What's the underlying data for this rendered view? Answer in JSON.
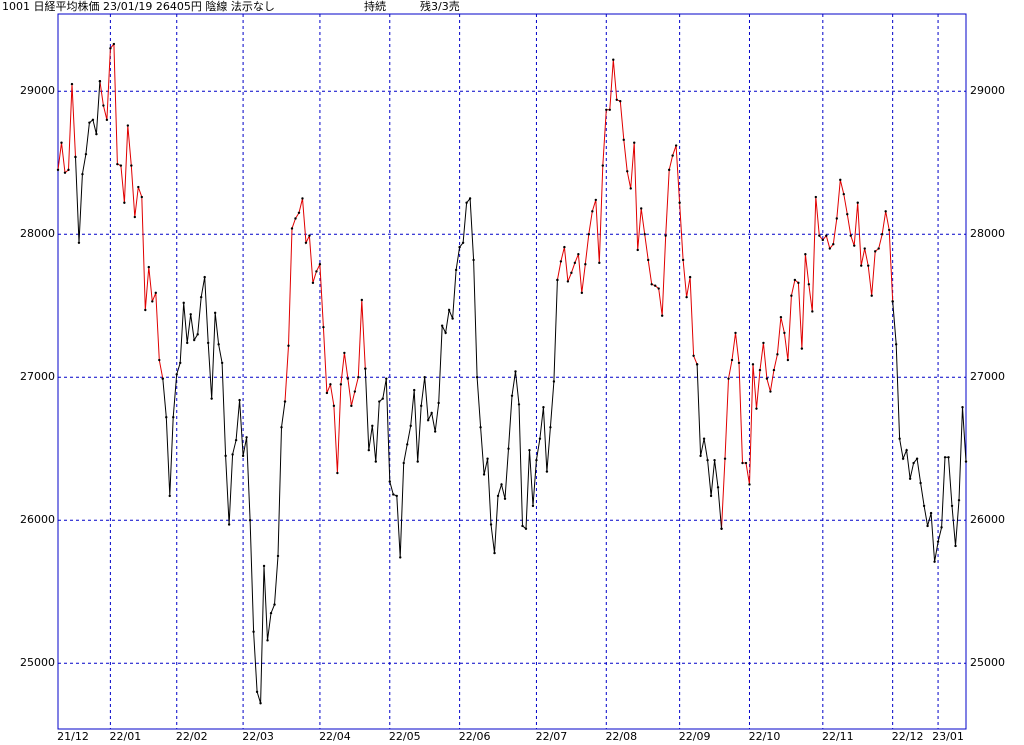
{
  "chart_data": {
    "type": "line",
    "title": "1001 日経平均株価 23/01/19 26405円 陰線 法示なし",
    "status": "持続",
    "remaining": "残3/3売",
    "xlim": [
      0,
      260
    ],
    "ylim": [
      24540,
      29540
    ],
    "yticks": [
      25000,
      26000,
      27000,
      28000,
      29000
    ],
    "xticks": [
      {
        "value": 0,
        "label": "21/12"
      },
      {
        "value": 15,
        "label": "22/01"
      },
      {
        "value": 34,
        "label": "22/02"
      },
      {
        "value": 53,
        "label": "22/03"
      },
      {
        "value": 75,
        "label": "22/04"
      },
      {
        "value": 95,
        "label": "22/05"
      },
      {
        "value": 115,
        "label": "22/06"
      },
      {
        "value": 137,
        "label": "22/07"
      },
      {
        "value": 157,
        "label": "22/08"
      },
      {
        "value": 178,
        "label": "22/09"
      },
      {
        "value": 198,
        "label": "22/10"
      },
      {
        "value": 219,
        "label": "22/11"
      },
      {
        "value": 239,
        "label": "22/12"
      },
      {
        "value": 252,
        "label": "23/01"
      }
    ],
    "grid": true,
    "grid_color": "#0000c8",
    "series": [
      {
        "color": "#e00000",
        "values": [
          28450,
          28640,
          28430,
          28450,
          29050,
          28540,
          null,
          null,
          null,
          null,
          null,
          null,
          29070,
          28900,
          28800,
          29300,
          29330,
          28490,
          28480,
          28220,
          28760,
          28480,
          28120,
          28330,
          28260,
          27470,
          27770,
          27530,
          27590,
          27120,
          26990,
          null,
          null,
          null,
          null,
          null,
          null,
          null,
          null,
          null,
          null,
          null,
          null,
          null,
          null,
          null,
          null,
          null,
          null,
          null,
          null,
          null,
          null,
          null,
          null,
          null,
          null,
          null,
          null,
          null,
          null,
          null,
          null,
          null,
          null,
          26830,
          27220,
          28040,
          28110,
          28150,
          28250,
          27940,
          27990,
          27660,
          27740,
          27790,
          27350,
          26890,
          26950,
          26800,
          26330,
          26950,
          27170,
          26990,
          26800,
          26900,
          27000,
          27540,
          27060,
          null,
          null,
          null,
          null,
          null,
          null,
          null,
          null,
          null,
          null,
          null,
          null,
          null,
          null,
          null,
          null,
          null,
          null,
          null,
          null,
          null,
          null,
          null,
          null,
          null,
          null,
          null,
          null,
          null,
          null,
          null,
          null,
          null,
          null,
          null,
          null,
          null,
          null,
          null,
          null,
          null,
          null,
          null,
          null,
          null,
          null,
          null,
          null,
          null,
          null,
          null,
          null,
          null,
          null,
          27680,
          27810,
          27910,
          27670,
          27730,
          27800,
          27860,
          27590,
          27790,
          28000,
          28160,
          28240,
          27800,
          28480,
          28870,
          28870,
          29220,
          28940,
          28930,
          28660,
          28440,
          28320,
          28640,
          27890,
          28180,
          28000,
          27820,
          27650,
          27640,
          27620,
          27430,
          27990,
          28450,
          28550,
          28620,
          28220,
          27820,
          27560,
          27700,
          27150,
          27090,
          null,
          null,
          null,
          null,
          null,
          null,
          25940,
          26430,
          26990,
          27120,
          27310,
          27100,
          26400,
          26400,
          26250,
          27090,
          26780,
          27050,
          27240,
          26990,
          26900,
          27050,
          27160,
          27420,
          27310,
          27120,
          27570,
          27680,
          27660,
          27200,
          27860,
          27650,
          27460,
          28260,
          27990,
          27960,
          27990,
          27900,
          27930,
          28110,
          28380,
          28280,
          28140,
          27990,
          27920,
          28220,
          27780,
          27900,
          27780,
          27570,
          27880,
          27900,
          28000,
          28160,
          28030,
          27530,
          null,
          null,
          null,
          null,
          null,
          null,
          null,
          null,
          null,
          null,
          null,
          null,
          null,
          null,
          null,
          null,
          null,
          null,
          null,
          null,
          null
        ]
      },
      {
        "color": "#000000",
        "values": [
          null,
          null,
          null,
          null,
          null,
          28540,
          27940,
          28420,
          28560,
          28780,
          28800,
          28700,
          29070,
          null,
          null,
          null,
          null,
          null,
          null,
          null,
          null,
          null,
          null,
          null,
          null,
          null,
          null,
          null,
          null,
          null,
          26990,
          26720,
          26170,
          26720,
          27020,
          27100,
          27520,
          27240,
          27440,
          27260,
          27300,
          27560,
          27700,
          27240,
          26850,
          27450,
          27230,
          27100,
          26450,
          25970,
          26460,
          26560,
          26840,
          26450,
          26580,
          26000,
          25220,
          24800,
          24720,
          25680,
          25160,
          25350,
          25410,
          25750,
          26650,
          26830,
          null,
          null,
          null,
          null,
          null,
          null,
          null,
          null,
          null,
          null,
          null,
          null,
          null,
          null,
          null,
          null,
          null,
          null,
          null,
          null,
          null,
          null,
          27060,
          26490,
          26660,
          26410,
          26830,
          26850,
          26990,
          26270,
          26180,
          26170,
          25740,
          26400,
          26530,
          26660,
          26910,
          26410,
          26800,
          27000,
          26700,
          26750,
          26620,
          26820,
          27360,
          27310,
          27470,
          27410,
          27750,
          27910,
          27940,
          28220,
          28250,
          27820,
          27000,
          26650,
          26320,
          26430,
          25970,
          25770,
          26170,
          26250,
          26150,
          26500,
          26870,
          27040,
          26810,
          25960,
          25940,
          26490,
          26100,
          26420,
          26570,
          26790,
          26340,
          26650,
          26970,
          27680,
          null,
          null,
          null,
          null,
          null,
          null,
          null,
          null,
          null,
          null,
          null,
          null,
          null,
          null,
          null,
          null,
          null,
          null,
          null,
          null,
          null,
          null,
          null,
          null,
          null,
          null,
          null,
          null,
          null,
          null,
          null,
          null,
          null,
          null,
          null,
          null,
          null,
          null,
          null,
          27090,
          26450,
          26570,
          26420,
          26170,
          26420,
          26230,
          25940,
          null,
          null,
          null,
          null,
          null,
          null,
          null,
          null,
          null,
          null,
          null,
          null,
          null,
          null,
          null,
          null,
          null,
          null,
          null,
          null,
          null,
          null,
          null,
          null,
          null,
          null,
          null,
          null,
          null,
          null,
          null,
          null,
          null,
          null,
          null,
          null,
          null,
          null,
          null,
          null,
          null,
          null,
          null,
          null,
          null,
          null,
          null,
          null,
          27530,
          27230,
          26570,
          26430,
          26490,
          26290,
          26400,
          26430,
          26260,
          26100,
          25960,
          26050,
          25710,
          25850,
          25950,
          26440,
          26440,
          26100,
          25820,
          26140,
          26790,
          26410
        ]
      }
    ]
  }
}
